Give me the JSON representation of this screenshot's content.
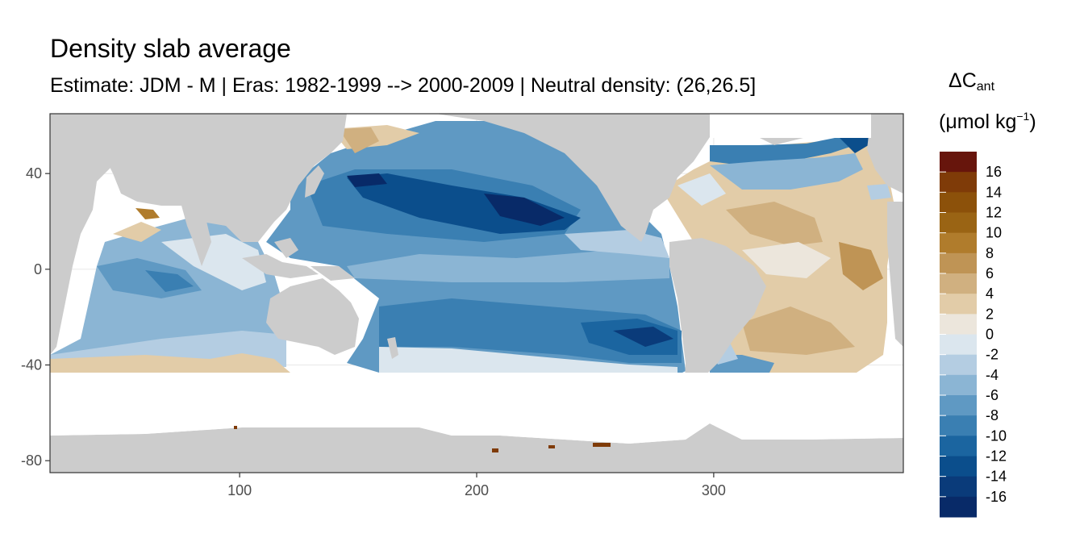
{
  "chart_data": {
    "type": "heatmap",
    "title": "Density slab average",
    "subtitle": "Estimate: JDM - M | Eras: 1982-1999 --> 2000-2009 | Neutral density: (26,26.5]",
    "xlabel": "",
    "ylabel": "",
    "xlim": [
      20,
      380
    ],
    "ylim": [
      -85,
      65
    ],
    "x_ticks": [
      100,
      200,
      300
    ],
    "y_ticks": [
      40,
      0,
      -40,
      -80
    ],
    "x_tick_labels": [
      "100",
      "200",
      "300"
    ],
    "y_tick_labels": [
      "40",
      "0",
      "-40",
      "-80"
    ],
    "grid": true,
    "legend": {
      "position": "right",
      "title_symbol": "ΔC",
      "title_sub": "ant",
      "unit_open": "(μmol kg",
      "unit_sup": "−1",
      "unit_close": ")",
      "labels": [
        "16",
        "14",
        "12",
        "10",
        "8",
        "6",
        "4",
        "2",
        "0",
        "-2",
        "-4",
        "-6",
        "-8",
        "-10",
        "-12",
        "-14",
        "-16"
      ],
      "colors": [
        "#67150c",
        "#7f3b08",
        "#8c510a",
        "#9a6414",
        "#b07c2c",
        "#bf9455",
        "#d0b080",
        "#e2cca8",
        "#ece6dc",
        "#dbe6ee",
        "#b4cde2",
        "#8bb5d4",
        "#5f99c3",
        "#3a7fb2",
        "#1b65a0",
        "#0b4e8c",
        "#0a3b7a",
        "#082a68"
      ]
    },
    "colors": {
      "land": "#cccccc",
      "no_data": "#ffffff",
      "panel_border": "#333333",
      "grid": "#ebebeb"
    }
  }
}
